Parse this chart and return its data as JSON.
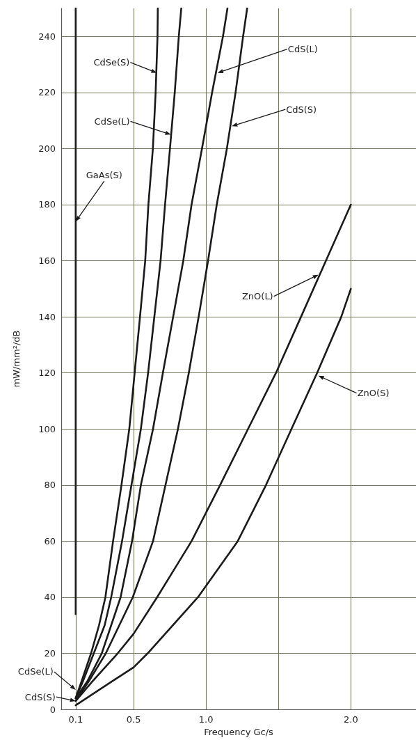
{
  "chart_data": {
    "type": "line",
    "xlabel": "Frequency Gc/s",
    "ylabel": "mW/mm²/dB",
    "xlim": [
      0,
      2.45
    ],
    "ylim": [
      0,
      250
    ],
    "xticks": [
      0.1,
      0.5,
      {
        "value": 1,
        "label": "1.0"
      },
      {
        "value": 1.5,
        "label": null
      },
      {
        "value": 2,
        "label": "2.0"
      }
    ],
    "yticks": [
      0,
      20,
      40,
      60,
      80,
      100,
      120,
      140,
      160,
      180,
      200,
      220,
      240
    ],
    "grid": true,
    "marker": "none",
    "line_style": "solid",
    "series": [
      {
        "color": "#1a1a1a",
        "x": [
          0.1,
          0.1
        ],
        "values": [
          34,
          250
        ]
      },
      {
        "color": "#1a1a1a",
        "x": [
          0.1,
          0.14,
          0.206,
          0.261,
          0.305,
          0.358,
          0.416,
          0.47,
          0.507,
          0.544,
          0.58,
          0.602,
          0.633,
          0.652,
          0.665,
          0.667
        ],
        "values": [
          4,
          10,
          20,
          30,
          40,
          60,
          80,
          100,
          120,
          140,
          160,
          180,
          200,
          220,
          240,
          250
        ]
      },
      {
        "color": "#1a1a1a",
        "x": [
          0.1,
          0.15,
          0.225,
          0.3,
          0.345,
          0.42,
          0.485,
          0.55,
          0.6,
          0.643,
          0.686,
          0.717,
          0.751,
          0.784,
          0.812,
          0.829
        ],
        "values": [
          4,
          10,
          20,
          30,
          40,
          60,
          80,
          100,
          120,
          140,
          160,
          180,
          200,
          220,
          240,
          250
        ]
      },
      {
        "color": "#1a1a1a",
        "x": [
          0.1,
          0.18,
          0.28,
          0.41,
          0.489,
          0.55,
          0.634,
          0.702,
          0.773,
          0.843,
          0.9,
          0.972,
          1.042,
          1.117,
          1.148
        ],
        "values": [
          4,
          10,
          20,
          40,
          60,
          80,
          100,
          120,
          140,
          160,
          180,
          200,
          220,
          240,
          250
        ]
      },
      {
        "color": "#1a1a1a",
        "x": [
          0.1,
          0.19,
          0.308,
          0.494,
          0.634,
          0.72,
          0.806,
          0.881,
          0.949,
          1.014,
          1.074,
          1.144,
          1.204,
          1.256,
          1.284
        ],
        "values": [
          3,
          10,
          20,
          40,
          60,
          80,
          100,
          120,
          140,
          160,
          180,
          200,
          220,
          240,
          250
        ]
      },
      {
        "color": "#1a1a1a",
        "x": [
          0.1,
          0.215,
          0.39,
          0.5,
          0.662,
          0.9,
          1.097,
          1.29,
          1.483,
          1.656,
          1.828,
          2.0
        ],
        "values": [
          3,
          10,
          20,
          27,
          40,
          60,
          80,
          100,
          120,
          140,
          160,
          180
        ]
      },
      {
        "color": "#1a1a1a",
        "x": [
          0.1,
          0.35,
          0.5,
          0.597,
          0.944,
          1.219,
          1.414,
          1.59,
          1.767,
          1.934,
          2.0
        ],
        "values": [
          1.5,
          10,
          15,
          20,
          40,
          60,
          80,
          100,
          120,
          140,
          150
        ]
      }
    ],
    "annotations": [
      {
        "text": "GaAs(S)",
        "x": 0.1,
        "y": 174
      },
      {
        "text": "CdSe(S)",
        "x": 0.66,
        "y": 227
      },
      {
        "text": "CdSe(L)",
        "x": 0.757,
        "y": 205
      },
      {
        "text": "CdS(L)",
        "x": 1.08,
        "y": 227
      },
      {
        "text": "CdS(S)",
        "x": 1.178,
        "y": 208
      },
      {
        "text": "ZnO(L)",
        "x": 1.776,
        "y": 155
      },
      {
        "text": "ZnO(S)",
        "x": 1.776,
        "y": 119
      },
      {
        "text": "CdSe(L)",
        "x": 0.1,
        "y": 7
      },
      {
        "text": "CdS(S)",
        "x": 0.1,
        "y": 3
      }
    ]
  }
}
